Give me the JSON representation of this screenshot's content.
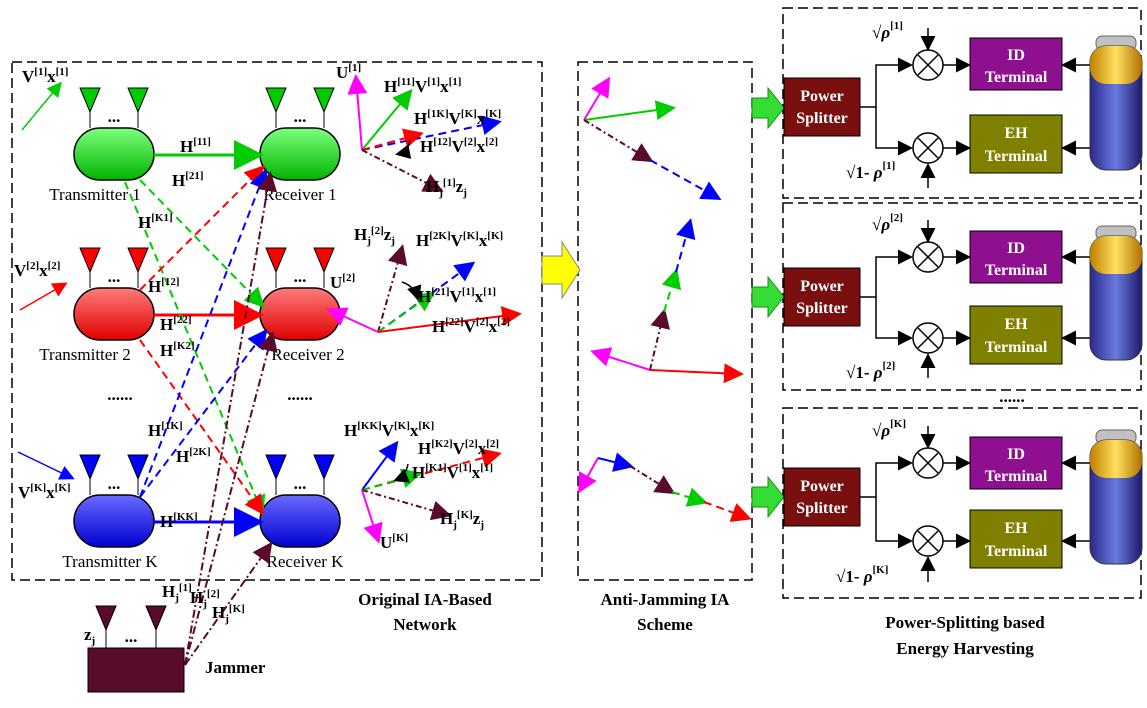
{
  "transmitters": [
    "Transmitter 1",
    "Transmitter 2",
    "Transmitter K"
  ],
  "receivers": [
    "Receiver 1",
    "Receiver 2",
    "Receiver K"
  ],
  "ellipsis": "......",
  "antenna_dots": "...",
  "jammer": {
    "label": "Jammer",
    "signal": "z_j"
  },
  "section_titles": {
    "network_line1": "Original IA-Based",
    "network_line2": "Network",
    "scheme_line1": "Anti-Jamming IA",
    "scheme_line2": "Scheme",
    "eh_line1": "Power-Splitting based",
    "eh_line2": "Energy Harvesting"
  },
  "eh_units": [
    {
      "splitter_line1": "Power",
      "splitter_line2": "Splitter",
      "id_line1": "ID",
      "id_line2": "Terminal",
      "eh_line1": "EH",
      "eh_line2": "Terminal",
      "rho": "[1]"
    },
    {
      "splitter_line1": "Power",
      "splitter_line2": "Splitter",
      "id_line1": "ID",
      "id_line2": "Terminal",
      "eh_line1": "EH",
      "eh_line2": "Terminal",
      "rho": "[2]"
    },
    {
      "splitter_line1": "Power",
      "splitter_line2": "Splitter",
      "id_line1": "ID",
      "id_line2": "Terminal",
      "eh_line1": "EH",
      "eh_line2": "Terminal",
      "rho": "[K]"
    }
  ],
  "colors": {
    "tx1": "#00cc00",
    "tx2": "#ff0000",
    "txK": "#0000ff",
    "jammer": "#5a0a2a",
    "splitter": "#7a0f0f",
    "id_box": "#8e108e",
    "eh_box": "#808000",
    "magenta": "#ff00ff",
    "arrow_yellow": "#ffff00",
    "arrow_green": "#33dd33"
  }
}
